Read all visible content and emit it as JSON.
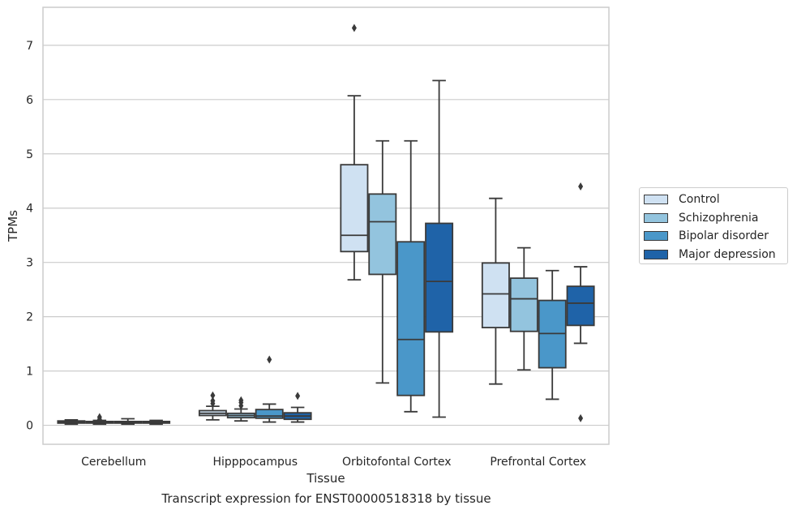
{
  "chart_data": {
    "type": "box",
    "caption": "Transcript expression for ENST00000518318 by tissue",
    "xlabel": "Tissue",
    "ylabel": "TPMs",
    "ylim": [
      -0.35,
      7.7
    ],
    "yticks": [
      0,
      1,
      2,
      3,
      4,
      5,
      6,
      7
    ],
    "grid": true,
    "legend_position": "right",
    "categories": [
      "Cerebellum",
      "Hipppocampus",
      "Orbitofontal Cortex",
      "Prefrontal Cortex"
    ],
    "series": [
      {
        "name": "Control",
        "color": "#cfe1f2",
        "boxes": [
          {
            "whisker_low": 0.02,
            "q1": 0.04,
            "median": 0.06,
            "q3": 0.08,
            "whisker_high": 0.1,
            "outliers": []
          },
          {
            "whisker_low": 0.1,
            "q1": 0.18,
            "median": 0.22,
            "q3": 0.27,
            "whisker_high": 0.35,
            "outliers": [
              0.4,
              0.45,
              0.55
            ]
          },
          {
            "whisker_low": 2.68,
            "q1": 3.2,
            "median": 3.5,
            "q3": 4.8,
            "whisker_high": 6.07,
            "outliers": [
              7.32
            ]
          },
          {
            "whisker_low": 0.76,
            "q1": 1.8,
            "median": 2.42,
            "q3": 2.99,
            "whisker_high": 4.18,
            "outliers": []
          }
        ]
      },
      {
        "name": "Schizophrenia",
        "color": "#93c4de",
        "boxes": [
          {
            "whisker_low": 0.02,
            "q1": 0.04,
            "median": 0.05,
            "q3": 0.07,
            "whisker_high": 0.09,
            "outliers": [
              0.11,
              0.15
            ]
          },
          {
            "whisker_low": 0.08,
            "q1": 0.14,
            "median": 0.18,
            "q3": 0.22,
            "whisker_high": 0.3,
            "outliers": [
              0.36,
              0.42,
              0.46
            ]
          },
          {
            "whisker_low": 0.78,
            "q1": 2.78,
            "median": 3.75,
            "q3": 4.26,
            "whisker_high": 5.24,
            "outliers": []
          },
          {
            "whisker_low": 1.02,
            "q1": 1.73,
            "median": 2.33,
            "q3": 2.71,
            "whisker_high": 3.27,
            "outliers": []
          }
        ]
      },
      {
        "name": "Bipolar disorder",
        "color": "#4a97c9",
        "boxes": [
          {
            "whisker_low": 0.02,
            "q1": 0.04,
            "median": 0.05,
            "q3": 0.07,
            "whisker_high": 0.12,
            "outliers": []
          },
          {
            "whisker_low": 0.06,
            "q1": 0.13,
            "median": 0.17,
            "q3": 0.29,
            "whisker_high": 0.39,
            "outliers": [
              1.21
            ]
          },
          {
            "whisker_low": 0.25,
            "q1": 0.55,
            "median": 1.58,
            "q3": 3.38,
            "whisker_high": 5.24,
            "outliers": []
          },
          {
            "whisker_low": 0.48,
            "q1": 1.06,
            "median": 1.69,
            "q3": 2.3,
            "whisker_high": 2.85,
            "outliers": []
          }
        ]
      },
      {
        "name": "Major depression",
        "color": "#1f63a8",
        "boxes": [
          {
            "whisker_low": 0.02,
            "q1": 0.04,
            "median": 0.05,
            "q3": 0.07,
            "whisker_high": 0.09,
            "outliers": []
          },
          {
            "whisker_low": 0.06,
            "q1": 0.11,
            "median": 0.17,
            "q3": 0.23,
            "whisker_high": 0.33,
            "outliers": [
              0.54
            ]
          },
          {
            "whisker_low": 0.15,
            "q1": 1.72,
            "median": 2.65,
            "q3": 3.72,
            "whisker_high": 6.35,
            "outliers": []
          },
          {
            "whisker_low": 1.51,
            "q1": 1.84,
            "median": 2.25,
            "q3": 2.56,
            "whisker_high": 2.92,
            "outliers": [
              0.13,
              4.4
            ]
          }
        ]
      }
    ]
  }
}
